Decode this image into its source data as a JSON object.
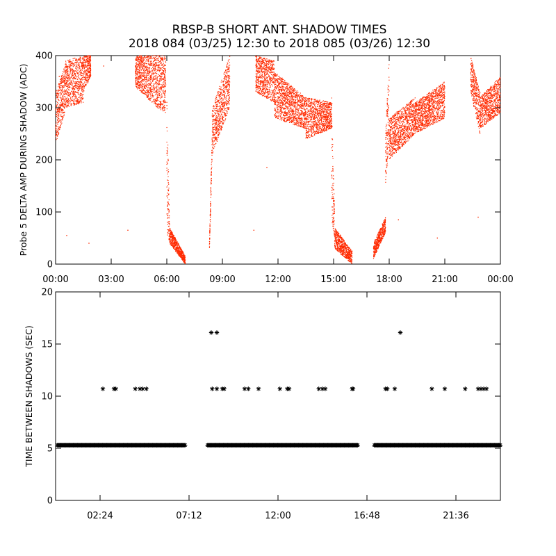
{
  "title": "RBSP-B SHORT ANT. SHADOW TIMES",
  "subtitle": "2018 084 (03/25) 12:30 to 2018 085 (03/26) 12:30",
  "chart_data": [
    {
      "type": "scatter",
      "xlabel": "",
      "ylabel": "Probe 5 DELTA AMP DURING SHADOW (ADC)",
      "xlim": [
        0,
        24
      ],
      "ylim": [
        0,
        400
      ],
      "x_tick_values": [
        0,
        3,
        6,
        9,
        12,
        15,
        18,
        21,
        24
      ],
      "x_tick_labels": [
        "00:00",
        "03:00",
        "06:00",
        "09:00",
        "12:00",
        "15:00",
        "18:00",
        "21:00",
        "00:00"
      ],
      "y_tick_values": [
        0,
        100,
        200,
        300,
        400
      ],
      "y_tick_labels": [
        "0",
        "100",
        "200",
        "300",
        "400"
      ],
      "color": "#ff2a00",
      "bands": [
        {
          "x": [
            0.0,
            0.5
          ],
          "y": [
            [
              230,
              330
            ],
            [
              290,
              380
            ]
          ]
        },
        {
          "x": [
            0.5,
            1.5
          ],
          "y": [
            [
              300,
              390
            ],
            [
              310,
              400
            ]
          ]
        },
        {
          "x": [
            1.5,
            1.9
          ],
          "y": [
            [
              330,
              400
            ],
            [
              360,
              400
            ]
          ]
        },
        {
          "x": [
            4.3,
            5.5
          ],
          "y": [
            [
              340,
              400
            ],
            [
              300,
              400
            ]
          ]
        },
        {
          "x": [
            5.5,
            5.95
          ],
          "y": [
            [
              300,
              400
            ],
            [
              290,
              400
            ]
          ]
        },
        {
          "x": [
            6.0,
            6.15
          ],
          "y": [
            [
              60,
              320
            ],
            [
              40,
              90
            ]
          ]
        },
        {
          "x": [
            6.15,
            7.0
          ],
          "y": [
            [
              40,
              70
            ],
            [
              0,
              15
            ]
          ]
        },
        {
          "x": [
            8.3,
            8.45
          ],
          "y": [
            [
              25,
              45
            ],
            [
              200,
              260
            ]
          ]
        },
        {
          "x": [
            8.45,
            9.4
          ],
          "y": [
            [
              210,
              300
            ],
            [
              300,
              400
            ]
          ]
        },
        {
          "x": [
            10.8,
            11.8
          ],
          "y": [
            [
              330,
              400
            ],
            [
              310,
              390
            ]
          ]
        },
        {
          "x": [
            11.8,
            13.5
          ],
          "y": [
            [
              280,
              370
            ],
            [
              260,
              320
            ]
          ]
        },
        {
          "x": [
            13.5,
            14.9
          ],
          "y": [
            [
              240,
              320
            ],
            [
              260,
              310
            ]
          ]
        },
        {
          "x": [
            14.9,
            15.05
          ],
          "y": [
            [
              80,
              330
            ],
            [
              50,
              100
            ]
          ]
        },
        {
          "x": [
            15.05,
            16.0
          ],
          "y": [
            [
              30,
              70
            ],
            [
              0,
              25
            ]
          ]
        },
        {
          "x": [
            17.15,
            17.8
          ],
          "y": [
            [
              10,
              40
            ],
            [
              60,
              90
            ]
          ]
        },
        {
          "x": [
            17.8,
            18.0
          ],
          "y": [
            [
              150,
              250
            ],
            [
              220,
              400
            ]
          ]
        },
        {
          "x": [
            18.0,
            19.4
          ],
          "y": [
            [
              200,
              280
            ],
            [
              250,
              320
            ]
          ]
        },
        {
          "x": [
            19.4,
            21.0
          ],
          "y": [
            [
              250,
              310
            ],
            [
              280,
              350
            ]
          ]
        },
        {
          "x": [
            22.4,
            22.9
          ],
          "y": [
            [
              330,
              400
            ],
            [
              250,
              330
            ]
          ]
        },
        {
          "x": [
            22.9,
            24.0
          ],
          "y": [
            [
              260,
              320
            ],
            [
              290,
              360
            ]
          ]
        }
      ],
      "isolated_points": [
        {
          "x": 0.2,
          "y": 360
        },
        {
          "x": 0.6,
          "y": 55
        },
        {
          "x": 1.8,
          "y": 40
        },
        {
          "x": 2.6,
          "y": 380
        },
        {
          "x": 3.9,
          "y": 65
        },
        {
          "x": 10.7,
          "y": 65
        },
        {
          "x": 11.4,
          "y": 185
        },
        {
          "x": 13.8,
          "y": 305
        },
        {
          "x": 18.5,
          "y": 85
        },
        {
          "x": 22.8,
          "y": 90
        },
        {
          "x": 20.6,
          "y": 50
        }
      ]
    },
    {
      "type": "scatter",
      "xlabel": "",
      "ylabel": "TIME BETWEEN SHADOWS (SEC)",
      "xlim": [
        0,
        24
      ],
      "ylim": [
        0,
        20
      ],
      "x_tick_values": [
        2.4,
        7.2,
        12.0,
        16.8,
        21.6
      ],
      "x_tick_labels": [
        "02:24",
        "07:12",
        "12:00",
        "16:48",
        "21:36"
      ],
      "y_tick_values": [
        0,
        5,
        10,
        15,
        20
      ],
      "y_tick_labels": [
        "0",
        "5",
        "10",
        "15",
        "20"
      ],
      "marker": "*",
      "color": "#000000",
      "baseline_value": 5.3,
      "baseline_ranges": [
        [
          0.1,
          7.0
        ],
        [
          8.2,
          16.3
        ],
        [
          17.2,
          24.0
        ]
      ],
      "points": [
        {
          "x": 2.55,
          "y": 10.7
        },
        {
          "x": 3.15,
          "y": 10.7
        },
        {
          "x": 3.25,
          "y": 10.7
        },
        {
          "x": 4.3,
          "y": 10.7
        },
        {
          "x": 4.55,
          "y": 10.7
        },
        {
          "x": 4.7,
          "y": 10.7
        },
        {
          "x": 4.9,
          "y": 10.7
        },
        {
          "x": 8.4,
          "y": 16.1
        },
        {
          "x": 8.7,
          "y": 16.1
        },
        {
          "x": 8.45,
          "y": 10.7
        },
        {
          "x": 8.7,
          "y": 10.7
        },
        {
          "x": 9.0,
          "y": 10.7
        },
        {
          "x": 9.1,
          "y": 10.7
        },
        {
          "x": 10.2,
          "y": 10.7
        },
        {
          "x": 10.4,
          "y": 10.7
        },
        {
          "x": 10.95,
          "y": 10.7
        },
        {
          "x": 12.1,
          "y": 10.7
        },
        {
          "x": 12.5,
          "y": 10.7
        },
        {
          "x": 12.6,
          "y": 10.7
        },
        {
          "x": 14.2,
          "y": 10.7
        },
        {
          "x": 14.4,
          "y": 10.7
        },
        {
          "x": 14.55,
          "y": 10.7
        },
        {
          "x": 16.0,
          "y": 10.7
        },
        {
          "x": 16.05,
          "y": 10.7
        },
        {
          "x": 17.8,
          "y": 10.7
        },
        {
          "x": 17.9,
          "y": 10.7
        },
        {
          "x": 18.3,
          "y": 10.7
        },
        {
          "x": 18.6,
          "y": 16.1
        },
        {
          "x": 20.3,
          "y": 10.7
        },
        {
          "x": 21.0,
          "y": 10.7
        },
        {
          "x": 22.1,
          "y": 10.7
        },
        {
          "x": 22.8,
          "y": 10.7
        },
        {
          "x": 22.95,
          "y": 10.7
        },
        {
          "x": 23.1,
          "y": 10.7
        },
        {
          "x": 23.25,
          "y": 10.7
        }
      ]
    }
  ]
}
